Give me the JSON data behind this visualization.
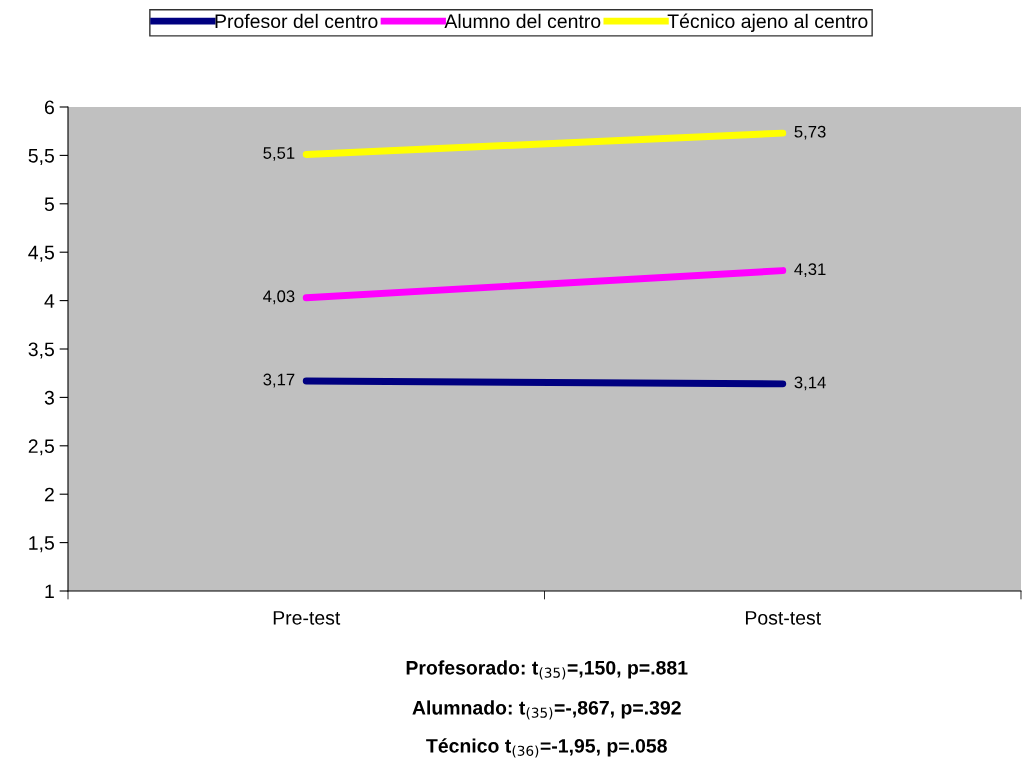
{
  "chart_data": {
    "type": "line",
    "categories": [
      "Pre-test",
      "Post-test"
    ],
    "series": [
      {
        "name": "Profesor del centro",
        "color": "#000080",
        "values": [
          3.17,
          3.14
        ],
        "value_labels": [
          "3,17",
          "3,14"
        ]
      },
      {
        "name": "Alumno del centro",
        "color": "#ff00ff",
        "values": [
          4.03,
          4.31
        ],
        "value_labels": [
          "4,03",
          "4,31"
        ]
      },
      {
        "name": "Técnico ajeno al centro",
        "color": "#ffff00",
        "values": [
          5.51,
          5.73
        ],
        "value_labels": [
          "5,51",
          "5,73"
        ]
      }
    ],
    "ylim": [
      1,
      6
    ],
    "yticks": [
      1,
      {
        "value": 1.5,
        "label": "1,5"
      },
      2,
      {
        "value": 2.5,
        "label": "2,5"
      },
      3,
      {
        "value": 3.5,
        "label": "3,5"
      },
      4,
      {
        "value": 4.5,
        "label": "4,5"
      },
      5,
      {
        "value": 5.5,
        "label": "5,5"
      },
      6
    ],
    "grid": false,
    "legend": "top",
    "marker": "none",
    "line_style": "solid",
    "annotations": [
      "Profesorado: t$_{(35)}$=,150, p=.881",
      "Alumnado: t$_{(35)}$=-,867, p=.392",
      "Técnico t$_{(36)}$=-1,95, p=.058"
    ]
  }
}
